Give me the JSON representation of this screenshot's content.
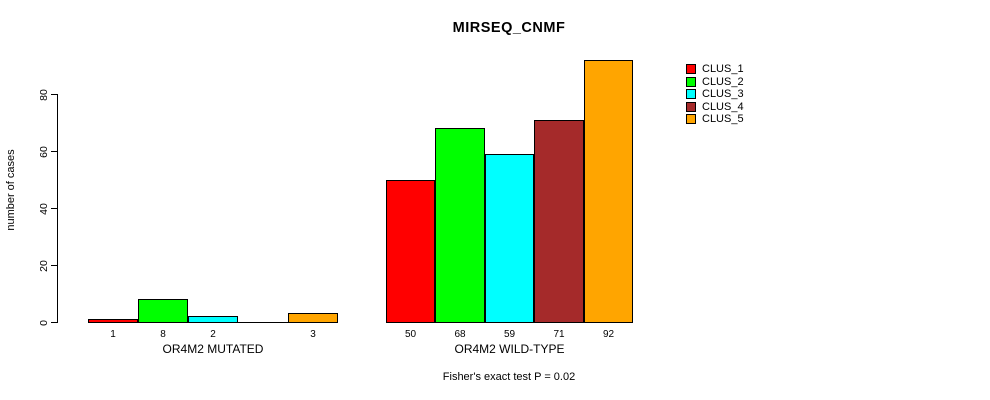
{
  "chart_data": {
    "type": "bar",
    "title": "MIRSEQ_CNMF",
    "ylabel": "number of cases",
    "xlabel": "",
    "ylim": [
      0,
      95
    ],
    "yticks": [
      0,
      20,
      40,
      60,
      80
    ],
    "grid": false,
    "legend_position": "right",
    "legend": [
      {
        "name": "CLUS_1",
        "color": "#FF0000"
      },
      {
        "name": "CLUS_2",
        "color": "#00FF00"
      },
      {
        "name": "CLUS_3",
        "color": "#00FFFF"
      },
      {
        "name": "CLUS_4",
        "color": "#A52A2A"
      },
      {
        "name": "CLUS_5",
        "color": "#FFA500"
      }
    ],
    "categories": [
      "OR4M2 MUTATED",
      "OR4M2 WILD-TYPE"
    ],
    "series": [
      {
        "name": "CLUS_1",
        "values": [
          1,
          50
        ]
      },
      {
        "name": "CLUS_2",
        "values": [
          8,
          68
        ]
      },
      {
        "name": "CLUS_3",
        "values": [
          2,
          59
        ]
      },
      {
        "name": "CLUS_4",
        "values": [
          0,
          71
        ]
      },
      {
        "name": "CLUS_5",
        "values": [
          3,
          92
        ]
      }
    ],
    "bar_value_labels": [
      [
        "1",
        "8",
        "2",
        "",
        "3"
      ],
      [
        "50",
        "68",
        "59",
        "71",
        "92"
      ]
    ],
    "caption": "Fisher's exact test P = 0.02"
  }
}
